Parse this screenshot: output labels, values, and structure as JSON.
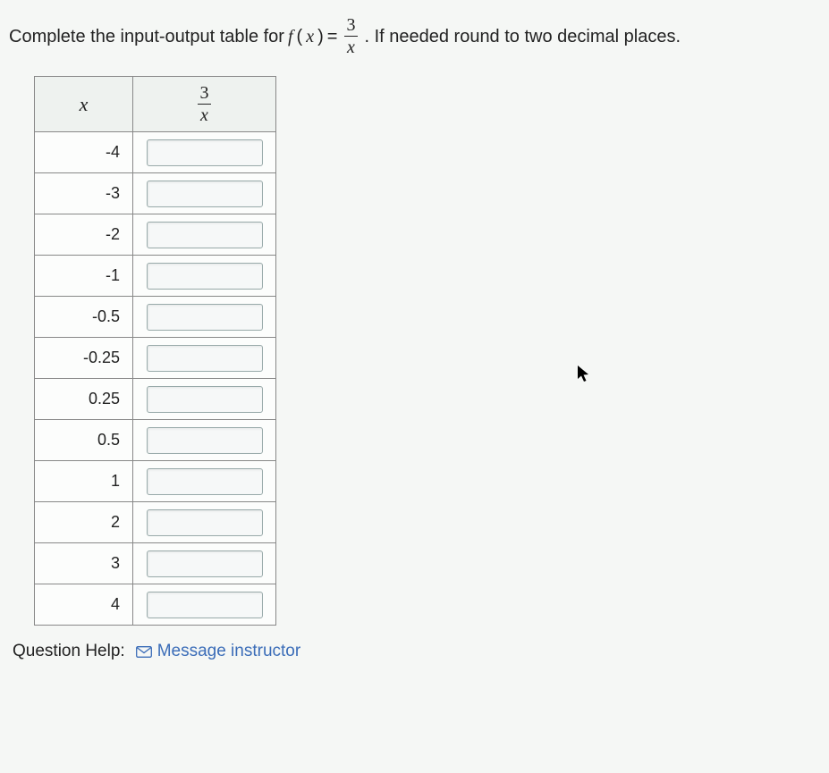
{
  "prompt": {
    "before": "Complete the input-output table for ",
    "func_left": "f",
    "func_arg": "x",
    "equals": " = ",
    "frac_num": "3",
    "frac_den": "x",
    "after": ". If needed round to two decimal places."
  },
  "table": {
    "header_x": "x",
    "header_frac_num": "3",
    "header_frac_den": "x",
    "rows": [
      {
        "x": "-4",
        "value": ""
      },
      {
        "x": "-3",
        "value": ""
      },
      {
        "x": "-2",
        "value": ""
      },
      {
        "x": "-1",
        "value": ""
      },
      {
        "x": "-0.5",
        "value": ""
      },
      {
        "x": "-0.25",
        "value": ""
      },
      {
        "x": "0.25",
        "value": ""
      },
      {
        "x": "0.5",
        "value": ""
      },
      {
        "x": "1",
        "value": ""
      },
      {
        "x": "2",
        "value": ""
      },
      {
        "x": "3",
        "value": ""
      },
      {
        "x": "4",
        "value": ""
      }
    ]
  },
  "help": {
    "label": "Question Help:",
    "message_link": "Message instructor"
  },
  "styling": {
    "page_bg": "#f5f7f5",
    "table_border": "#888",
    "header_bg": "#eef2ef",
    "input_border": "#9aa",
    "link_color": "#3b6db8",
    "text_color": "#222",
    "font_body": "Arial",
    "font_math": "Times New Roman",
    "fontsize_prompt": 20,
    "fontsize_cell": 18
  }
}
